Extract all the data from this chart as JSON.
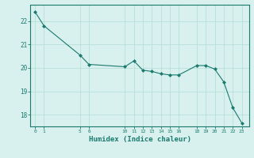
{
  "x": [
    0,
    1,
    5,
    6,
    10,
    11,
    12,
    13,
    14,
    15,
    16,
    18,
    19,
    20,
    21,
    22,
    23
  ],
  "y": [
    22.4,
    21.8,
    20.55,
    20.15,
    20.05,
    20.3,
    19.9,
    19.85,
    19.75,
    19.7,
    19.7,
    20.1,
    20.1,
    19.95,
    19.4,
    18.3,
    17.65
  ],
  "xlabel": "Humidex (Indice chaleur)",
  "ylim": [
    17.5,
    22.7
  ],
  "xlim": [
    -0.5,
    23.8
  ],
  "yticks": [
    18,
    19,
    20,
    21,
    22
  ],
  "xticks": [
    0,
    1,
    5,
    6,
    10,
    11,
    12,
    13,
    14,
    15,
    16,
    18,
    19,
    20,
    21,
    22,
    23
  ],
  "line_color": "#1a7a6e",
  "marker_color": "#1a7a6e",
  "bg_color": "#d8f0ee",
  "grid_color": "#b0ddd8",
  "axis_color": "#1a7a6e",
  "tick_color": "#1a7a6e",
  "label_color": "#1a7a6e"
}
